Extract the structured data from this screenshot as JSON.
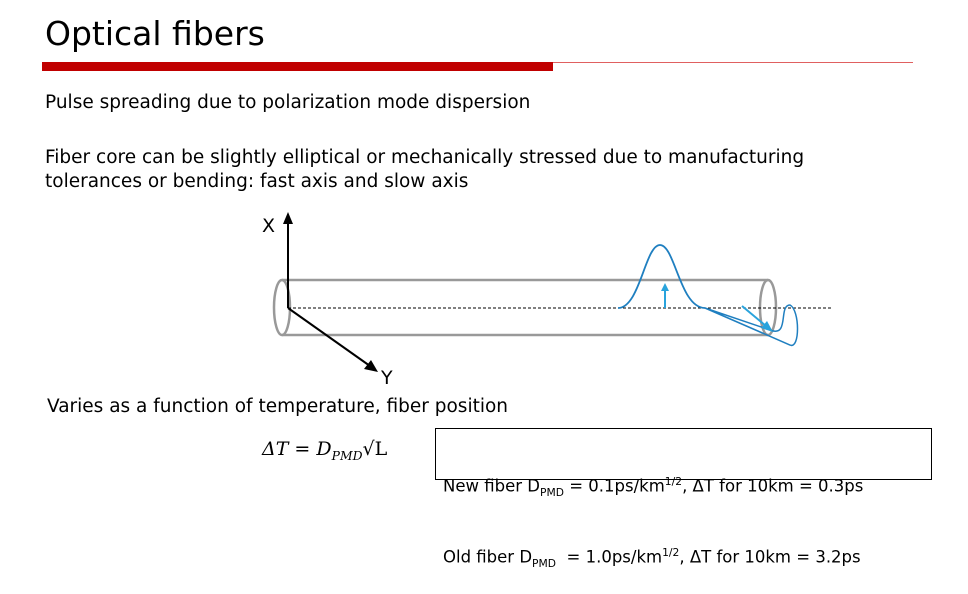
{
  "title": "Optical fibers",
  "paragraphs": [
    [
      "Pulse spreading due to polarization mode dispersion"
    ],
    [
      "Fiber core can be slightly elliptical or mechanically stressed due to manufacturing",
      "tolerances or bending: fast axis and slow axis"
    ]
  ],
  "diagram": {
    "x_label": "X",
    "y_label": "Y"
  },
  "note": "Varies as a function of temperature, fiber position",
  "formula": {
    "parts": [
      "ΔT = D",
      "PMD",
      "√L"
    ]
  },
  "box": {
    "lines": [
      {
        "parts": [
          "New fiber D",
          "PMD",
          " = 0.1ps/km",
          "1/2",
          ", ΔT for 10km = 0.3ps"
        ]
      },
      {
        "parts": [
          "Old fiber D",
          "PMD",
          "  = 1.0ps/km",
          "1/2",
          ", ΔT for 10km = 3.2ps"
        ]
      }
    ]
  }
}
